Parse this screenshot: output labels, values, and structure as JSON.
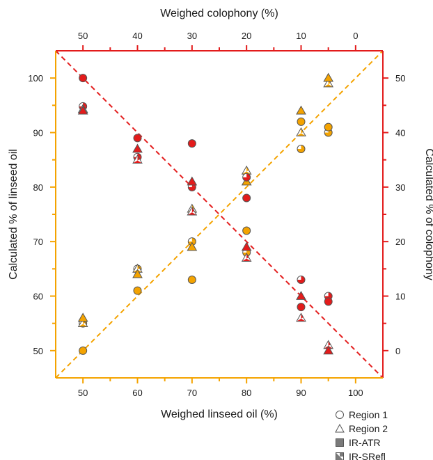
{
  "chart_data": {
    "type": "scatter",
    "xlabel": "Weighed linseed oil (%)",
    "x2label": "Weighed colophony (%)",
    "ylabel": "Calculated % of linseed oil",
    "y2label": "Calculated % of colophony",
    "xlim": [
      45,
      105
    ],
    "ylim": [
      45,
      105
    ],
    "x_ticks": [
      50,
      60,
      70,
      80,
      90,
      100
    ],
    "x2_ticks": [
      50,
      40,
      30,
      20,
      10,
      0
    ],
    "y_ticks": [
      50,
      60,
      70,
      80,
      90,
      100
    ],
    "y2_ticks": [
      0,
      10,
      20,
      30,
      40,
      50
    ],
    "grid": false,
    "legend_position": "bottom-right",
    "colors": {
      "linseed": "#F4A300",
      "colophony": "#E31B1B",
      "linseed_axis": "#F4A300",
      "colophony_axis": "#E31B1B",
      "marker_edge": "#555555",
      "text": "#1a1a1a"
    },
    "legend": [
      {
        "label": "Region 1",
        "marker": "circle-open"
      },
      {
        "label": "Region 2",
        "marker": "triangle-open"
      },
      {
        "label": "IR-ATR",
        "marker": "square-filled"
      },
      {
        "label": "IR-SRefl",
        "marker": "square-half"
      }
    ],
    "reference_lines": [
      {
        "name": "linseed ideal",
        "color": "#F4A300",
        "style": "dashed",
        "points": [
          [
            45,
            45
          ],
          [
            105,
            105
          ]
        ]
      },
      {
        "name": "colophony ideal",
        "color": "#E31B1B",
        "style": "dashed",
        "points": [
          [
            45,
            105
          ],
          [
            105,
            45
          ]
        ]
      }
    ],
    "series": [
      {
        "component": "linseed",
        "region": "Region 1",
        "method": "IR-SRefl",
        "points": [
          [
            50,
            55
          ],
          [
            60,
            65
          ],
          [
            70,
            70
          ],
          [
            80,
            68
          ],
          [
            90,
            87
          ],
          [
            95,
            90
          ]
        ]
      },
      {
        "component": "linseed",
        "region": "Region 2",
        "method": "IR-SRefl",
        "points": [
          [
            50,
            55
          ],
          [
            60,
            65
          ],
          [
            70,
            76
          ],
          [
            80,
            83
          ],
          [
            90,
            90
          ],
          [
            95,
            99
          ]
        ]
      },
      {
        "component": "linseed",
        "region": "Region 1",
        "method": "IR-ATR",
        "points": [
          [
            50,
            50
          ],
          [
            60,
            61
          ],
          [
            70,
            63
          ],
          [
            80,
            72
          ],
          [
            90,
            92
          ],
          [
            95,
            91
          ]
        ]
      },
      {
        "component": "linseed",
        "region": "Region 2",
        "method": "IR-ATR",
        "points": [
          [
            50,
            56
          ],
          [
            60,
            64
          ],
          [
            70,
            69
          ],
          [
            80,
            81
          ],
          [
            90,
            94
          ],
          [
            95,
            100
          ]
        ]
      },
      {
        "component": "colophony",
        "region": "Region 1",
        "method": "IR-SRefl",
        "points": [
          [
            50,
            44.8
          ],
          [
            60,
            35.5
          ],
          [
            70,
            30
          ],
          [
            80,
            31.8
          ],
          [
            90,
            13
          ],
          [
            95,
            10
          ]
        ]
      },
      {
        "component": "colophony",
        "region": "Region 2",
        "method": "IR-SRefl",
        "points": [
          [
            50,
            44.3
          ],
          [
            60,
            35
          ],
          [
            70,
            25.5
          ],
          [
            80,
            17
          ],
          [
            90,
            6
          ],
          [
            95,
            1
          ]
        ]
      },
      {
        "component": "colophony",
        "region": "Region 1",
        "method": "IR-ATR",
        "points": [
          [
            50,
            50
          ],
          [
            60,
            39
          ],
          [
            70,
            38
          ],
          [
            80,
            28
          ],
          [
            90,
            8
          ],
          [
            95,
            9
          ]
        ]
      },
      {
        "component": "colophony",
        "region": "Region 2",
        "method": "IR-ATR",
        "points": [
          [
            50,
            44
          ],
          [
            60,
            37
          ],
          [
            70,
            31
          ],
          [
            80,
            19
          ],
          [
            90,
            10
          ],
          [
            95,
            0
          ]
        ]
      }
    ]
  }
}
